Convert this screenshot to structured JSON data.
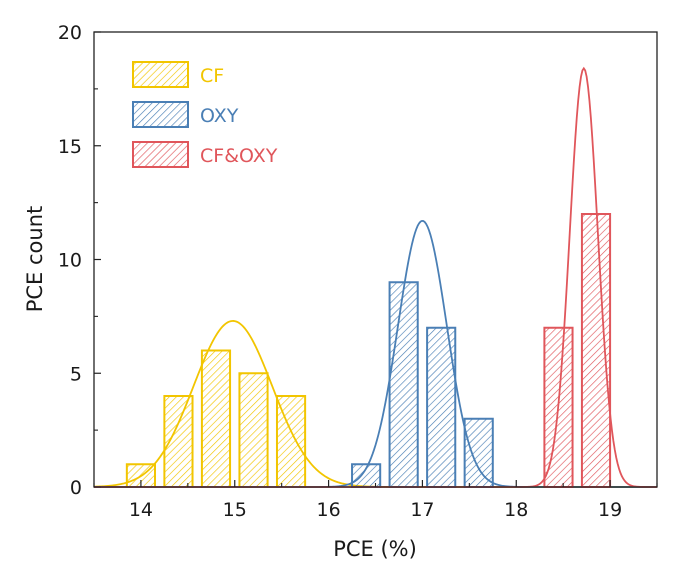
{
  "chart_data": {
    "type": "bar",
    "xlabel": "PCE (%)",
    "ylabel": "PCE count",
    "xlim": [
      13.5,
      19.5
    ],
    "ylim": [
      0,
      20
    ],
    "x_ticks": [
      "14",
      "15",
      "16",
      "17",
      "18",
      "19"
    ],
    "y_ticks": [
      "0",
      "5",
      "10",
      "15",
      "20"
    ],
    "legend_position": "top-left",
    "series": [
      {
        "name": "CF",
        "color": "#f2c500",
        "bin_width": 0.3,
        "bins": [
          {
            "x": 14.0,
            "count": 1
          },
          {
            "x": 14.4,
            "count": 4
          },
          {
            "x": 14.8,
            "count": 6
          },
          {
            "x": 15.2,
            "count": 5
          },
          {
            "x": 15.6,
            "count": 4
          }
        ],
        "fit": {
          "mean": 14.98,
          "sd": 0.42,
          "peak": 7.3
        }
      },
      {
        "name": "OXY",
        "color": "#4a7fb5",
        "bin_width": 0.3,
        "bins": [
          {
            "x": 16.4,
            "count": 1
          },
          {
            "x": 16.8,
            "count": 9
          },
          {
            "x": 17.2,
            "count": 7
          },
          {
            "x": 17.6,
            "count": 3
          }
        ],
        "fit": {
          "mean": 17.0,
          "sd": 0.26,
          "peak": 11.7
        }
      },
      {
        "name": "CF&OXY",
        "color": "#e0565b",
        "bin_width": 0.3,
        "bins": [
          {
            "x": 18.45,
            "count": 7
          },
          {
            "x": 18.85,
            "count": 12
          }
        ],
        "fit": {
          "mean": 18.72,
          "sd": 0.15,
          "peak": 18.4
        }
      }
    ]
  }
}
